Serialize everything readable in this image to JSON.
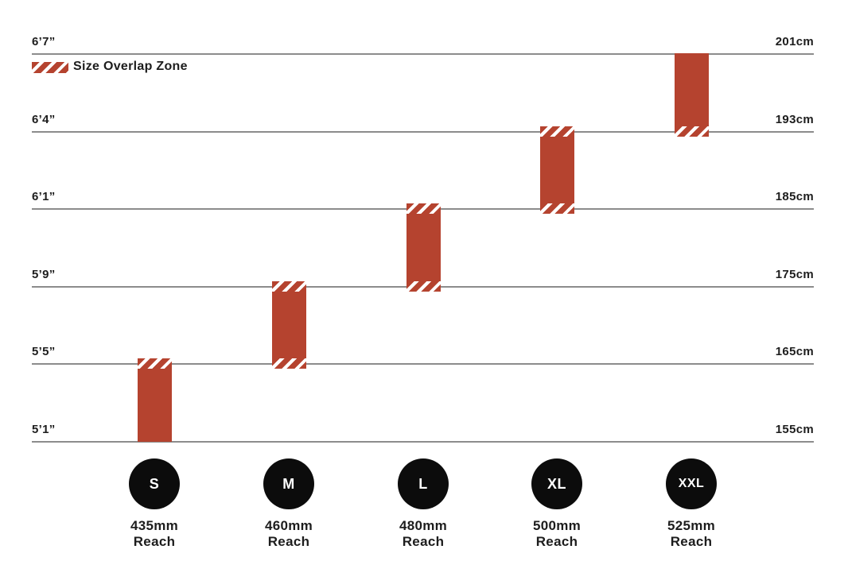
{
  "legend": {
    "label": "Size Overlap Zone"
  },
  "rows": [
    {
      "ft": "6’7”",
      "cm": "201cm"
    },
    {
      "ft": "6’4”",
      "cm": "193cm"
    },
    {
      "ft": "6’1”",
      "cm": "185cm"
    },
    {
      "ft": "5’9”",
      "cm": "175cm"
    },
    {
      "ft": "5’5”",
      "cm": "165cm"
    },
    {
      "ft": "5’1”",
      "cm": "155cm"
    }
  ],
  "sizes": [
    {
      "label": "S",
      "reach_mm": "435mm",
      "reach_word": "Reach"
    },
    {
      "label": "M",
      "reach_mm": "460mm",
      "reach_word": "Reach"
    },
    {
      "label": "L",
      "reach_mm": "480mm",
      "reach_word": "Reach"
    },
    {
      "label": "XL",
      "reach_mm": "500mm",
      "reach_word": "Reach"
    },
    {
      "label": "XXL",
      "reach_mm": "525mm",
      "reach_word": "Reach"
    }
  ],
  "colors": {
    "bar_red": "#b5432f",
    "gridline_gray": "#8c8c8c",
    "badge_black": "#0c0c0c",
    "text": "#1d1d1d"
  },
  "chart_data": {
    "type": "bar",
    "title": "",
    "xlabel": "",
    "ylabel": "",
    "legend": [
      "Size Overlap Zone"
    ],
    "legend_position": "top-left",
    "grid": true,
    "y_axis_left_ticks": [
      "6’7”",
      "6’4”",
      "6’1”",
      "5’9”",
      "5’5”",
      "5’1”"
    ],
    "y_axis_right_ticks": [
      "201cm",
      "193cm",
      "185cm",
      "175cm",
      "165cm",
      "155cm"
    ],
    "ylim_cm": [
      155,
      201
    ],
    "categories": [
      "S",
      "M",
      "L",
      "XL",
      "XXL"
    ],
    "series": [
      {
        "name": "S",
        "height_min_cm": 155,
        "height_max_cm": 165,
        "reach_mm": 435,
        "overlap_zone_top": true,
        "overlap_zone_bottom": false
      },
      {
        "name": "M",
        "height_min_cm": 165,
        "height_max_cm": 175,
        "reach_mm": 460,
        "overlap_zone_top": true,
        "overlap_zone_bottom": true
      },
      {
        "name": "L",
        "height_min_cm": 175,
        "height_max_cm": 185,
        "reach_mm": 480,
        "overlap_zone_top": true,
        "overlap_zone_bottom": true
      },
      {
        "name": "XL",
        "height_min_cm": 185,
        "height_max_cm": 193,
        "reach_mm": 500,
        "overlap_zone_top": true,
        "overlap_zone_bottom": true
      },
      {
        "name": "XXL",
        "height_min_cm": 193,
        "height_max_cm": 201,
        "reach_mm": 525,
        "overlap_zone_top": false,
        "overlap_zone_bottom": true
      }
    ]
  }
}
